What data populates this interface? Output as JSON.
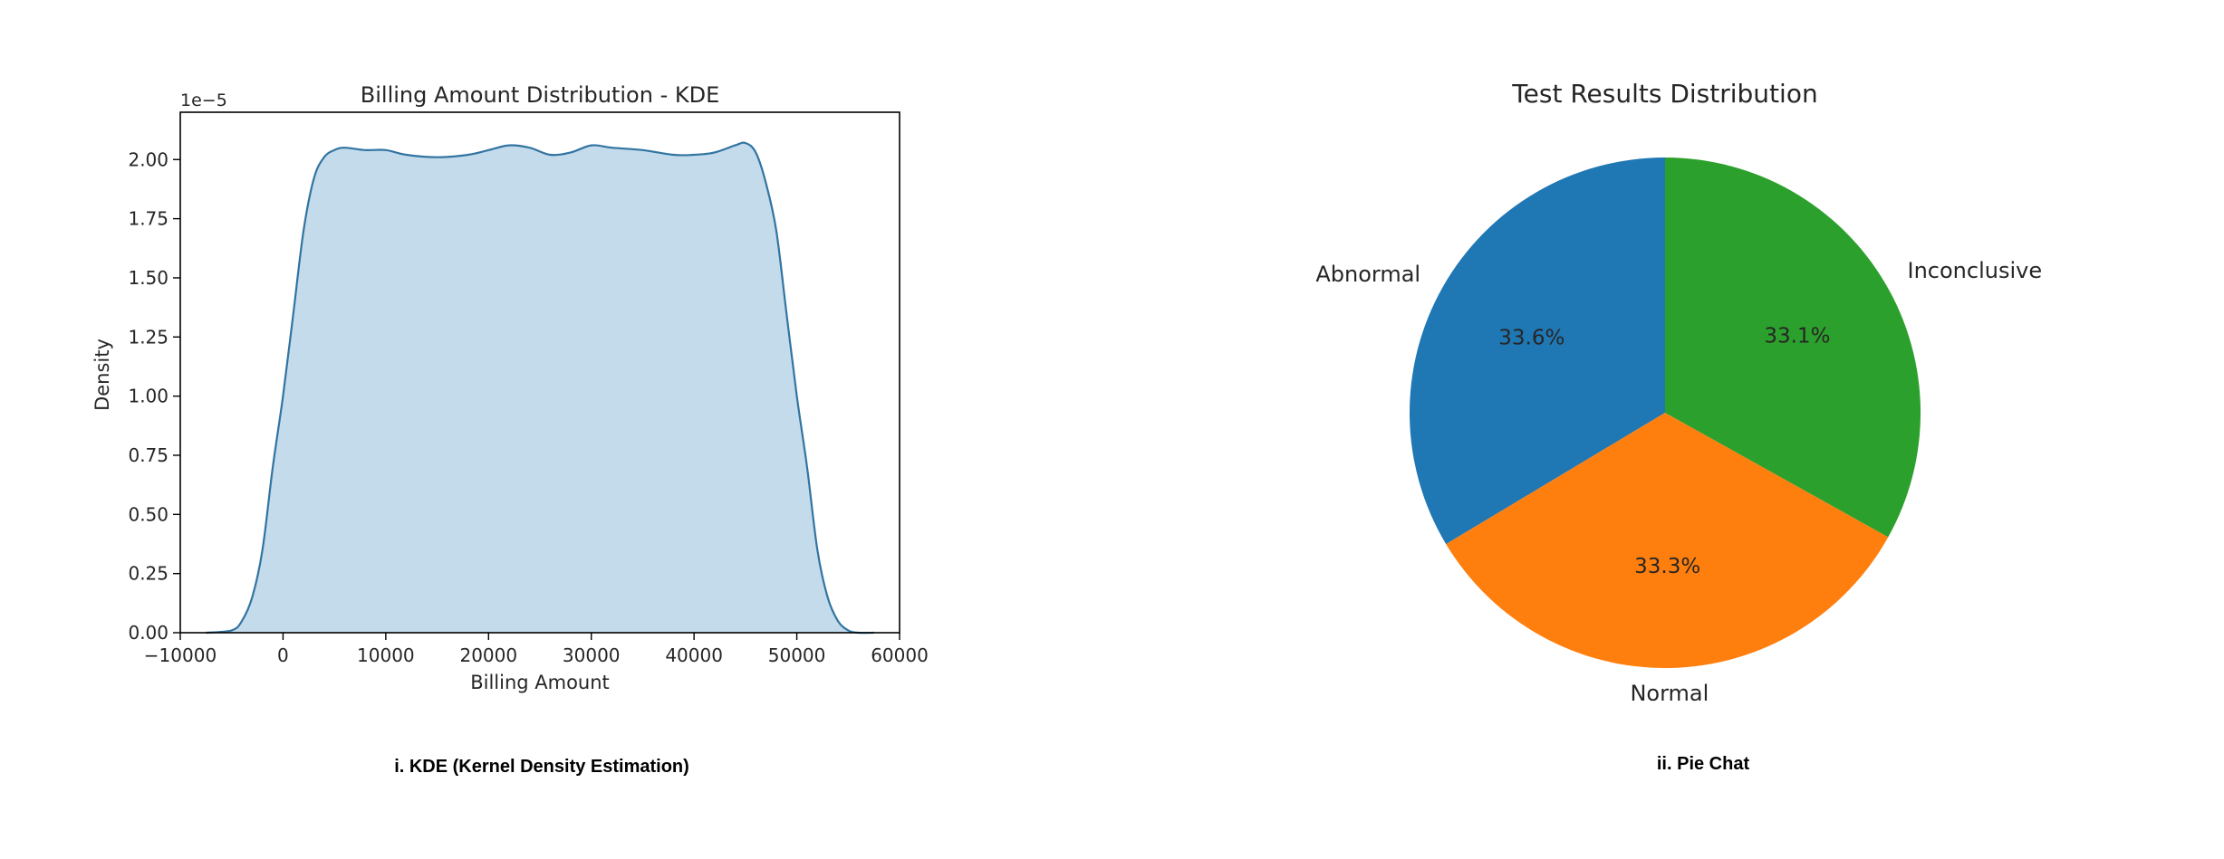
{
  "captions": {
    "kde": "i. KDE (Kernel Density Estimation)",
    "pie": "ii. Pie Chat"
  },
  "chart_data": [
    {
      "type": "area",
      "title": "Billing Amount Distribution - KDE",
      "xlabel": "Billing Amount",
      "ylabel": "Density",
      "y_offset_label": "1e−5",
      "xlim": [
        -10000,
        60000
      ],
      "ylim": [
        0,
        2.2
      ],
      "y_scale_factor": 1e-05,
      "xticks": [
        -10000,
        0,
        10000,
        20000,
        30000,
        40000,
        50000,
        60000
      ],
      "xtick_labels": [
        "−10000",
        "0",
        "10000",
        "20000",
        "30000",
        "40000",
        "50000",
        "60000"
      ],
      "yticks": [
        0,
        0.25,
        0.5,
        0.75,
        1.0,
        1.25,
        1.5,
        1.75,
        2.0
      ],
      "ytick_labels": [
        "0.00",
        "0.25",
        "0.50",
        "0.75",
        "1.00",
        "1.25",
        "1.50",
        "1.75",
        "2.00"
      ],
      "grid": false,
      "color": "#3274a1",
      "fill_color": "#c4dbec",
      "x": [
        -7500,
        -5000,
        -4000,
        -3000,
        -2000,
        -1000,
        0,
        1000,
        2000,
        3000,
        4000,
        5000,
        6000,
        8000,
        10000,
        12000,
        15000,
        18000,
        20000,
        22000,
        24000,
        26000,
        28000,
        30000,
        32000,
        35000,
        38000,
        40000,
        42000,
        44000,
        45000,
        46000,
        47000,
        48000,
        49000,
        50000,
        51000,
        52000,
        53000,
        54000,
        55000,
        56000,
        57500
      ],
      "y": [
        0.0,
        0.01,
        0.05,
        0.15,
        0.35,
        0.7,
        1.0,
        1.35,
        1.7,
        1.92,
        2.01,
        2.04,
        2.05,
        2.04,
        2.04,
        2.02,
        2.01,
        2.02,
        2.04,
        2.06,
        2.05,
        2.02,
        2.03,
        2.06,
        2.05,
        2.04,
        2.02,
        2.02,
        2.03,
        2.06,
        2.07,
        2.03,
        1.9,
        1.7,
        1.35,
        1.0,
        0.7,
        0.35,
        0.15,
        0.05,
        0.01,
        0.0,
        0.0
      ]
    },
    {
      "type": "pie",
      "title": "Test Results Distribution",
      "labels": [
        "Abnormal",
        "Normal",
        "Inconclusive"
      ],
      "values": [
        33.6,
        33.3,
        33.1
      ],
      "value_labels": [
        "33.6%",
        "33.3%",
        "33.1%"
      ],
      "colors": [
        "#1f77b4",
        "#ff7f0e",
        "#2ca02c"
      ],
      "start_angle_deg": 90,
      "direction": "counterclockwise"
    }
  ]
}
